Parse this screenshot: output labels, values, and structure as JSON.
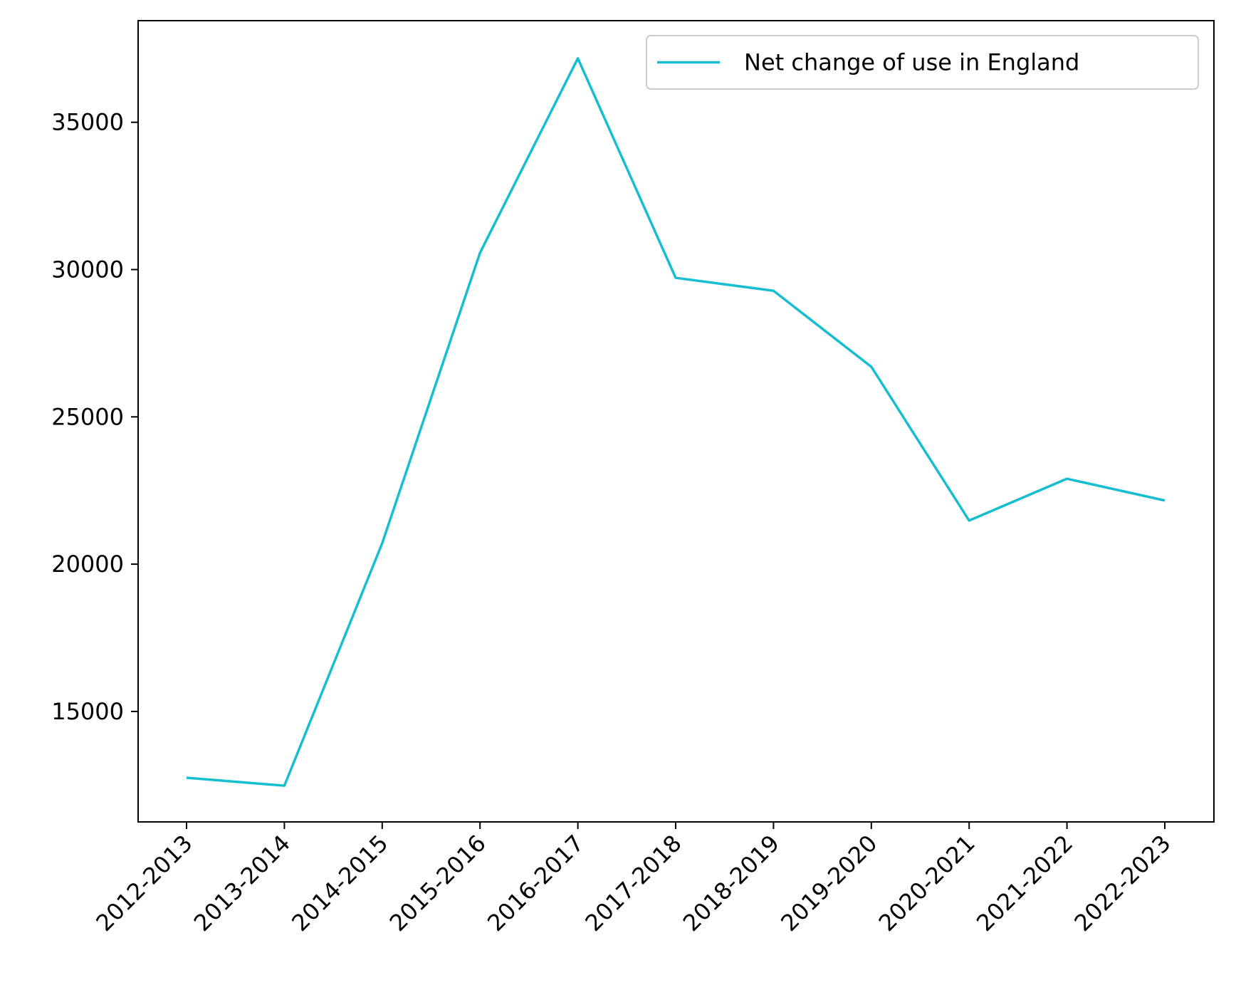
{
  "chart_data": {
    "type": "line",
    "title": "",
    "xlabel": "",
    "ylabel": "",
    "categories": [
      "2012-2013",
      "2013-2014",
      "2014-2015",
      "2015-2016",
      "2016-2017",
      "2017-2018",
      "2018-2019",
      "2019-2020",
      "2020-2021",
      "2021-2022",
      "2022-2023"
    ],
    "series": [
      {
        "name": "Net change of use in England",
        "color": "#17becf",
        "values": [
          12750,
          12480,
          20710,
          30570,
          37170,
          29720,
          29280,
          26700,
          21480,
          22900,
          22160
        ]
      }
    ],
    "ylim": [
      11250,
      38450
    ],
    "yticks": [
      15000,
      20000,
      25000,
      30000,
      35000
    ],
    "legend_position": "top-right",
    "grid": false
  }
}
